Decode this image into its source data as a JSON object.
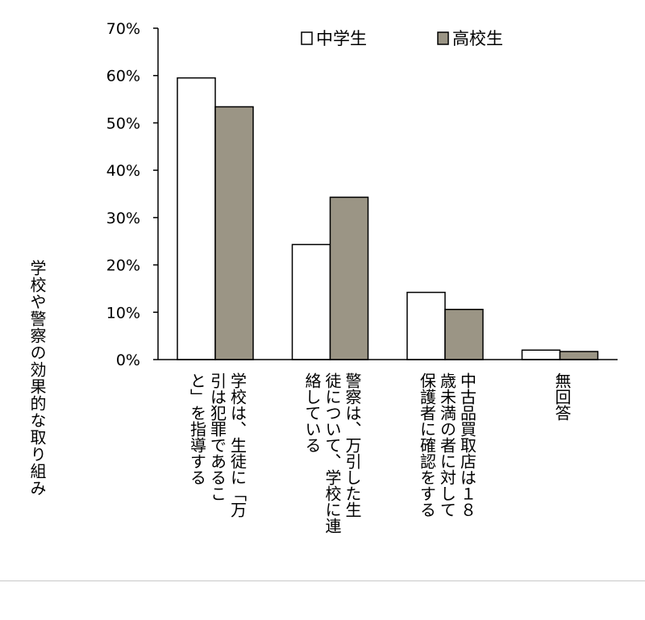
{
  "chart_data": {
    "type": "bar",
    "title": "",
    "ylabel": "学校や警察の効果的な取り組み",
    "ylim": [
      0,
      70
    ],
    "yticks": [
      "0%",
      "10%",
      "20%",
      "30%",
      "40%",
      "50%",
      "60%",
      "70%"
    ],
    "grid": false,
    "legend_position": "top-right",
    "categories": [
      "学校は、生徒に「万引は犯罪であること」を指導する",
      "警察は、万引した生徒について、学校に連絡している",
      "中古品買取店は１８歳未満の者に対して保護者に確認をする",
      "無回答"
    ],
    "category_lines": [
      [
        "学校は、生徒に「万",
        "引は犯罪であるこ",
        "と」を指導する"
      ],
      [
        "警察は、万引した生",
        "徒について、学校に連",
        "絡している"
      ],
      [
        "中古品買取店は１８",
        "歳未満の者に対して",
        "保護者に確認をする"
      ],
      [
        "無回答"
      ]
    ],
    "series": [
      {
        "name": "中学生",
        "color": "#ffffff",
        "values": [
          59.5,
          24.3,
          14.2,
          2.0
        ]
      },
      {
        "name": "高校生",
        "color": "#9b9585",
        "values": [
          53.4,
          34.3,
          10.6,
          1.7
        ]
      }
    ]
  }
}
